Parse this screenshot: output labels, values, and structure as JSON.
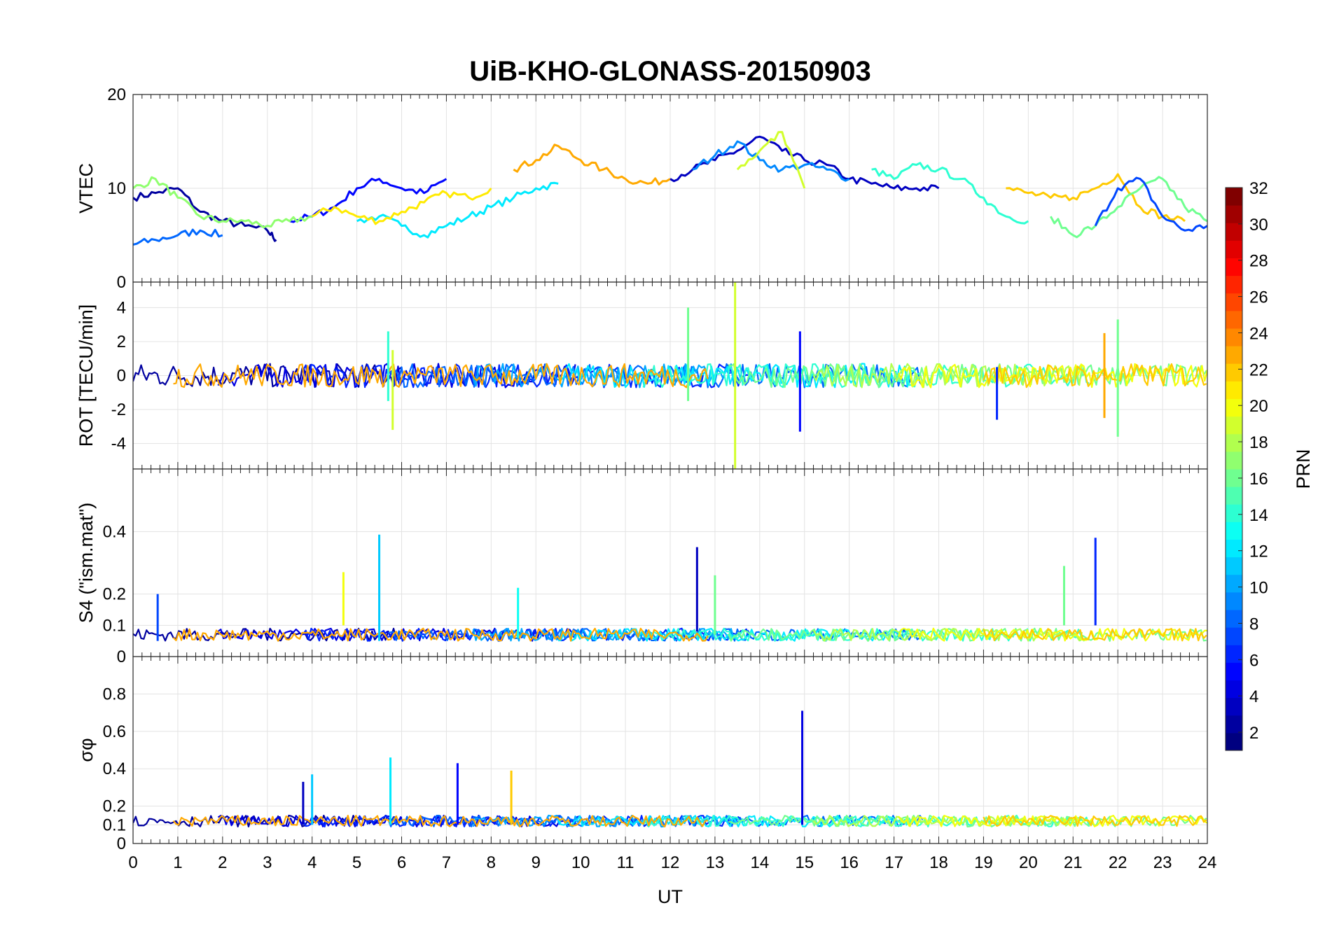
{
  "chart_data": {
    "type": "line",
    "title": "UiB-KHO-GLONASS-20150903",
    "xlabel": "UT",
    "xlim": [
      0,
      24
    ],
    "xticks": [
      "0",
      "1",
      "2",
      "3",
      "4",
      "5",
      "6",
      "7",
      "8",
      "9",
      "10",
      "11",
      "12",
      "13",
      "14",
      "15",
      "16",
      "17",
      "18",
      "19",
      "20",
      "21",
      "22",
      "23",
      "24"
    ],
    "grid": true,
    "colorbar": {
      "label": "PRN",
      "range": [
        1,
        32
      ],
      "ticks": [
        "2",
        "4",
        "6",
        "8",
        "10",
        "12",
        "14",
        "16",
        "18",
        "20",
        "22",
        "24",
        "26",
        "28",
        "30",
        "32"
      ],
      "colormap": "jet"
    },
    "panels": [
      {
        "ylabel": "VTEC",
        "ylim": [
          0,
          20
        ],
        "yticks": [
          "0",
          "10",
          "20"
        ],
        "series": [
          {
            "prn": 2,
            "x": [
              0,
              0.5,
              1,
              1.5,
              2,
              2.5,
              3,
              3.2
            ],
            "y": [
              9,
              9.5,
              10,
              7.5,
              6.5,
              6,
              5.5,
              4.5
            ]
          },
          {
            "prn": 5,
            "x": [
              3.5,
              4,
              4.5,
              5,
              5.5,
              6,
              6.5,
              7
            ],
            "y": [
              6.5,
              7,
              8,
              10,
              11,
              10,
              9.5,
              11
            ]
          },
          {
            "prn": 8,
            "x": [
              0,
              0.5,
              1,
              1.5,
              2
            ],
            "y": [
              4,
              4.5,
              5,
              5.5,
              5
            ]
          },
          {
            "prn": 12,
            "x": [
              5,
              5.5,
              6,
              6.5,
              7,
              7.5,
              8,
              8.5,
              9,
              9.5
            ],
            "y": [
              6.5,
              7,
              6,
              5,
              6,
              7,
              8,
              9,
              10,
              10.5
            ]
          },
          {
            "prn": 17,
            "x": [
              0,
              0.5,
              1,
              1.5,
              2,
              2.5,
              3,
              3.5,
              4
            ],
            "y": [
              10,
              11,
              9,
              7,
              6.5,
              6.5,
              6,
              6.5,
              7
            ]
          },
          {
            "prn": 21,
            "x": [
              4,
              4.5,
              5,
              5.5,
              6,
              6.5,
              7,
              7.5,
              8
            ],
            "y": [
              7,
              8,
              7,
              6.5,
              7.5,
              8.5,
              9.5,
              9,
              10
            ]
          },
          {
            "prn": 23,
            "x": [
              8.5,
              9,
              9.5,
              10,
              10.5,
              11,
              11.5,
              12
            ],
            "y": [
              12,
              13,
              14.5,
              13,
              12,
              11,
              10.5,
              11
            ]
          },
          {
            "prn": 3,
            "x": [
              12,
              12.5,
              13,
              13.5,
              14,
              14.5,
              15,
              15.5,
              16,
              16.5,
              17,
              17.5,
              18
            ],
            "y": [
              11,
              12,
              13,
              14,
              15.5,
              14,
              13,
              12.5,
              11,
              10.5,
              10,
              10,
              10
            ]
          },
          {
            "prn": 9,
            "x": [
              12.5,
              13,
              13.5,
              14,
              14.5,
              15,
              15.5,
              16
            ],
            "y": [
              12,
              13.5,
              15,
              13,
              12,
              12.5,
              12,
              11
            ]
          },
          {
            "prn": 19,
            "x": [
              13.5,
              14,
              14.5,
              15
            ],
            "y": [
              12,
              14,
              16,
              10
            ]
          },
          {
            "prn": 14,
            "x": [
              16.5,
              17,
              17.5,
              18,
              18.5,
              19,
              19.5,
              20
            ],
            "y": [
              12,
              11,
              12.5,
              12,
              11,
              9,
              7,
              6.5
            ]
          },
          {
            "prn": 22,
            "x": [
              19.5,
              20,
              20.5,
              21,
              21.5,
              22,
              22.5,
              23,
              23.5
            ],
            "y": [
              10,
              9.5,
              9,
              9,
              10,
              11.5,
              8,
              7,
              6.5
            ]
          },
          {
            "prn": 16,
            "x": [
              20.5,
              21,
              21.5,
              22,
              22.5,
              23,
              23.5,
              24
            ],
            "y": [
              7,
              5,
              6,
              8,
              10,
              11,
              8,
              6.5
            ]
          },
          {
            "prn": 7,
            "x": [
              21.5,
              22,
              22.5,
              23,
              23.5,
              24
            ],
            "y": [
              6,
              10,
              11,
              7,
              5.5,
              6
            ]
          }
        ]
      },
      {
        "ylabel": "ROT [TECU/min]",
        "ylim": [
          -5.5,
          5.5
        ],
        "yticks": [
          "-4",
          "-2",
          "0",
          "2",
          "4"
        ],
        "spikes": [
          {
            "prn": 19,
            "x": 13.45,
            "ymin": -5.5,
            "ymax": 5.5
          },
          {
            "prn": 16,
            "x": 12.4,
            "ymin": -1.5,
            "ymax": 4
          },
          {
            "prn": 5,
            "x": 14.9,
            "ymin": -3.3,
            "ymax": 2.6
          },
          {
            "prn": 14,
            "x": 5.7,
            "ymin": -1.5,
            "ymax": 2.6
          },
          {
            "prn": 19,
            "x": 5.8,
            "ymin": -3.2,
            "ymax": 1.5
          },
          {
            "prn": 16,
            "x": 22.0,
            "ymin": -3.6,
            "ymax": 3.3
          },
          {
            "prn": 23,
            "x": 21.7,
            "ymin": -2.5,
            "ymax": 2.5
          },
          {
            "prn": 6,
            "x": 19.3,
            "ymin": -2.6,
            "ymax": 0.5
          }
        ]
      },
      {
        "ylabel": "S4 (\"ism.mat\")",
        "ylim": [
          0,
          0.6
        ],
        "yticks": [
          "0",
          "0.1",
          "0.2",
          "0.4"
        ],
        "spikes": [
          {
            "prn": 11,
            "x": 5.5,
            "ymin": 0.05,
            "ymax": 0.39
          },
          {
            "prn": 20,
            "x": 4.7,
            "ymin": 0.1,
            "ymax": 0.27
          },
          {
            "prn": 3,
            "x": 12.6,
            "ymin": 0.08,
            "ymax": 0.35
          },
          {
            "prn": 6,
            "x": 21.5,
            "ymin": 0.1,
            "ymax": 0.38
          },
          {
            "prn": 16,
            "x": 20.8,
            "ymin": 0.1,
            "ymax": 0.29
          },
          {
            "prn": 7,
            "x": 0.55,
            "ymin": 0.05,
            "ymax": 0.2
          },
          {
            "prn": 13,
            "x": 8.6,
            "ymin": 0.06,
            "ymax": 0.22
          },
          {
            "prn": 16,
            "x": 13.0,
            "ymin": 0.07,
            "ymax": 0.26
          }
        ]
      },
      {
        "ylabel": "σφ",
        "ylim": [
          0,
          1
        ],
        "yticks": [
          "0",
          "0.1",
          "0.2",
          "0.4",
          "0.6",
          "0.8"
        ],
        "spikes": [
          {
            "prn": 4,
            "x": 14.95,
            "ymin": 0.1,
            "ymax": 0.71
          },
          {
            "prn": 12,
            "x": 5.75,
            "ymin": 0.1,
            "ymax": 0.46
          },
          {
            "prn": 5,
            "x": 7.25,
            "ymin": 0.1,
            "ymax": 0.43
          },
          {
            "prn": 22,
            "x": 8.45,
            "ymin": 0.1,
            "ymax": 0.39
          },
          {
            "prn": 11,
            "x": 4.0,
            "ymin": 0.1,
            "ymax": 0.37
          },
          {
            "prn": 3,
            "x": 3.8,
            "ymin": 0.1,
            "ymax": 0.33
          }
        ]
      }
    ]
  }
}
